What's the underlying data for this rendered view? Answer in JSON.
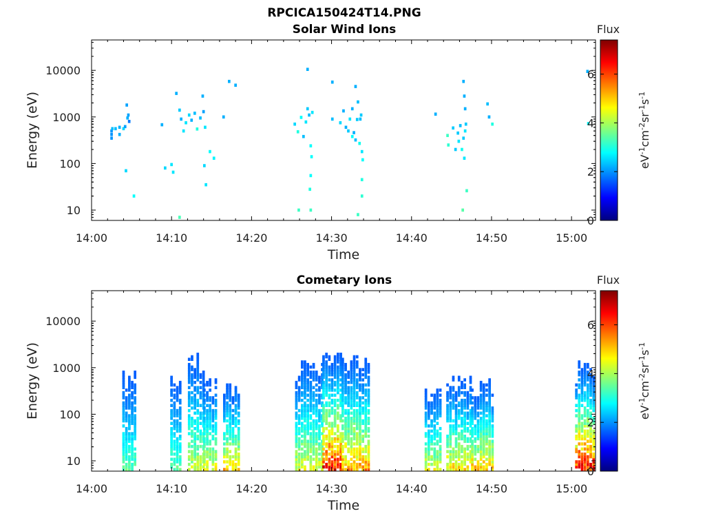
{
  "figure": {
    "title": "RPCICA150424T14.PNG"
  },
  "chart_data": [
    {
      "type": "heatmap",
      "title": "Solar Wind Ions",
      "xlabel": "Time",
      "ylabel": "Energy (eV)",
      "x_ticks": [
        "14:00",
        "14:10",
        "14:20",
        "14:30",
        "14:40",
        "14:50",
        "15:00"
      ],
      "xlim_minutes": [
        0,
        63
      ],
      "y_scale": "log",
      "y_ticks": [
        "10",
        "100",
        "1000",
        "10000"
      ],
      "ylim": [
        6,
        45000
      ],
      "colorbar": {
        "title": "Flux",
        "label": "eV-1cm-2sr-1s-1",
        "ticks": [
          "0",
          "2",
          "4",
          "6"
        ],
        "range": [
          0,
          7.4
        ]
      },
      "points": [
        [
          2.5,
          350,
          2
        ],
        [
          2.5,
          420,
          2
        ],
        [
          2.5,
          500,
          2
        ],
        [
          2.6,
          560,
          2.3
        ],
        [
          3.0,
          560,
          2.3
        ],
        [
          3.5,
          600,
          2.2
        ],
        [
          3.5,
          420,
          2.2
        ],
        [
          4.0,
          560,
          2.5
        ],
        [
          4.2,
          620,
          2.1
        ],
        [
          4.4,
          1800,
          2.1
        ],
        [
          4.5,
          950,
          2.2
        ],
        [
          4.6,
          1100,
          2.1
        ],
        [
          4.7,
          800,
          1.8
        ],
        [
          4.3,
          70,
          2.5
        ],
        [
          5.3,
          20,
          2.8
        ],
        [
          8.8,
          680,
          2.2
        ],
        [
          9.2,
          80,
          2.5
        ],
        [
          10.0,
          95,
          2.6
        ],
        [
          10.2,
          65,
          2.6
        ],
        [
          10.6,
          3200,
          2.2
        ],
        [
          11.0,
          1400,
          2.4
        ],
        [
          11.2,
          900,
          2.2
        ],
        [
          11.5,
          500,
          2.6
        ],
        [
          11.8,
          750,
          2.6
        ],
        [
          12.2,
          1100,
          2.5
        ],
        [
          12.5,
          850,
          2.2
        ],
        [
          12.9,
          1200,
          2.3
        ],
        [
          13.2,
          550,
          3.0
        ],
        [
          13.6,
          950,
          2.3
        ],
        [
          13.9,
          2800,
          2.2
        ],
        [
          14.0,
          1300,
          2.1
        ],
        [
          14.1,
          90,
          2.5
        ],
        [
          14.2,
          600,
          2.6
        ],
        [
          14.3,
          35,
          2.6
        ],
        [
          14.8,
          180,
          2.8
        ],
        [
          15.3,
          130,
          2.7
        ],
        [
          16.5,
          1000,
          2.2
        ],
        [
          17.2,
          5800,
          2.2
        ],
        [
          18.0,
          4800,
          2.2
        ],
        [
          11.0,
          7,
          3.3
        ],
        [
          25.4,
          700,
          2.5
        ],
        [
          25.8,
          480,
          3.0
        ],
        [
          25.9,
          10,
          3.2
        ],
        [
          26.2,
          980,
          2.8
        ],
        [
          26.5,
          380,
          2.3
        ],
        [
          26.8,
          780,
          2.6
        ],
        [
          27.0,
          1500,
          2.4
        ],
        [
          27.2,
          1100,
          2.3
        ],
        [
          27.0,
          10500,
          2.2
        ],
        [
          27.4,
          240,
          2.8
        ],
        [
          27.5,
          140,
          2.8
        ],
        [
          27.3,
          28,
          3.0
        ],
        [
          27.4,
          55,
          2.8
        ],
        [
          27.4,
          10,
          3.2
        ],
        [
          27.6,
          1250,
          2.6
        ],
        [
          30.1,
          5600,
          2.2
        ],
        [
          30.1,
          900,
          2.3
        ],
        [
          31.1,
          750,
          2.5
        ],
        [
          31.5,
          1350,
          2.2
        ],
        [
          31.8,
          600,
          2.2
        ],
        [
          32.1,
          500,
          2.4
        ],
        [
          32.3,
          900,
          2.6
        ],
        [
          32.6,
          1500,
          2.2
        ],
        [
          32.6,
          380,
          2.8
        ],
        [
          32.8,
          460,
          2.2
        ],
        [
          33.0,
          4500,
          2.2
        ],
        [
          33.0,
          320,
          2.3
        ],
        [
          33.2,
          880,
          2.4
        ],
        [
          33.3,
          2100,
          2.3
        ],
        [
          33.5,
          270,
          2.9
        ],
        [
          33.6,
          900,
          2.3
        ],
        [
          33.7,
          1100,
          2.4
        ],
        [
          33.8,
          180,
          2.6
        ],
        [
          33.9,
          120,
          2.8
        ],
        [
          33.8,
          45,
          3.0
        ],
        [
          33.8,
          20,
          3.1
        ],
        [
          33.3,
          8,
          3.2
        ],
        [
          43.0,
          1150,
          2.2
        ],
        [
          44.5,
          400,
          3.2
        ],
        [
          44.6,
          250,
          3.1
        ],
        [
          45.2,
          580,
          2.4
        ],
        [
          45.5,
          200,
          2.4
        ],
        [
          45.8,
          450,
          2.4
        ],
        [
          45.9,
          300,
          2.6
        ],
        [
          46.1,
          650,
          2.3
        ],
        [
          46.3,
          200,
          2.9
        ],
        [
          46.5,
          350,
          2.4
        ],
        [
          46.7,
          500,
          2.6
        ],
        [
          46.8,
          700,
          2.4
        ],
        [
          46.7,
          1500,
          2.2
        ],
        [
          46.6,
          2800,
          2.2
        ],
        [
          46.5,
          5800,
          2.2
        ],
        [
          46.6,
          130,
          2.6
        ],
        [
          46.9,
          26,
          3.2
        ],
        [
          46.4,
          10,
          3.4
        ],
        [
          49.5,
          1900,
          2.3
        ],
        [
          49.7,
          1000,
          2.2
        ],
        [
          50.1,
          700,
          3.0
        ],
        [
          62.0,
          9500,
          2.2
        ],
        [
          62.1,
          720,
          2.8
        ]
      ]
    },
    {
      "type": "heatmap",
      "title": "Cometary Ions",
      "xlabel": "Time",
      "ylabel": "Energy (eV)",
      "x_ticks": [
        "14:00",
        "14:10",
        "14:20",
        "14:30",
        "14:40",
        "14:50",
        "15:00"
      ],
      "xlim_minutes": [
        0,
        63
      ],
      "y_scale": "log",
      "y_ticks": [
        "10",
        "100",
        "1000",
        "10000"
      ],
      "ylim": [
        6,
        45000
      ],
      "colorbar": {
        "title": "Flux",
        "label": "eV-1cm-2sr-1s-1",
        "ticks": [
          "0",
          "2",
          "4",
          "6"
        ],
        "range": [
          0,
          7.4
        ]
      },
      "bursts": [
        {
          "t0": 4.0,
          "t1": 5.6,
          "emax": 950,
          "peak": 3.6,
          "seed": 11
        },
        {
          "t0": 10.0,
          "t1": 11.4,
          "emax": 1000,
          "peak": 3.6,
          "seed": 12
        },
        {
          "t0": 12.2,
          "t1": 14.3,
          "emax": 2200,
          "peak": 4.4,
          "seed": 13
        },
        {
          "t0": 14.1,
          "t1": 15.8,
          "emax": 700,
          "peak": 4.7,
          "seed": 14
        },
        {
          "t0": 16.6,
          "t1": 18.6,
          "emax": 550,
          "peak": 5.2,
          "seed": 15
        },
        {
          "t0": 25.6,
          "t1": 29.0,
          "emax": 1500,
          "peak": 4.6,
          "seed": 16
        },
        {
          "t0": 29.0,
          "t1": 31.4,
          "emax": 2200,
          "peak": 6.8,
          "seed": 17
        },
        {
          "t0": 31.4,
          "t1": 34.8,
          "emax": 2100,
          "peak": 5.6,
          "seed": 18
        },
        {
          "t0": 41.8,
          "t1": 43.8,
          "emax": 450,
          "peak": 4.6,
          "seed": 19
        },
        {
          "t0": 44.5,
          "t1": 47.4,
          "emax": 680,
          "peak": 5.0,
          "seed": 20
        },
        {
          "t0": 47.6,
          "t1": 50.2,
          "emax": 650,
          "peak": 5.3,
          "seed": 21
        },
        {
          "t0": 60.6,
          "t1": 62.8,
          "emax": 1500,
          "peak": 6.8,
          "seed": 22
        }
      ]
    }
  ]
}
